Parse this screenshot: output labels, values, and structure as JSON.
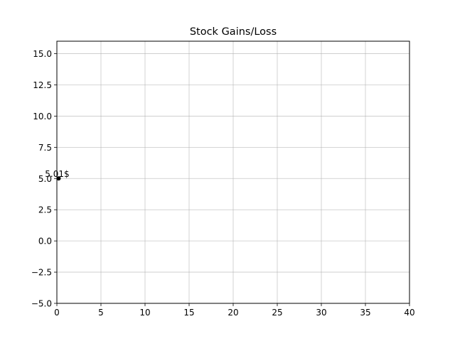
{
  "chart_data": {
    "type": "scatter",
    "title": "Stock Gains/Loss",
    "xlabel": "",
    "ylabel": "",
    "xlim": [
      0,
      40
    ],
    "ylim": [
      -5,
      16
    ],
    "xticks": [
      0,
      5,
      10,
      15,
      20,
      25,
      30,
      35,
      40
    ],
    "xtick_labels": [
      "0",
      "5",
      "10",
      "15",
      "20",
      "25",
      "30",
      "35",
      "40"
    ],
    "yticks": [
      -5,
      -2.5,
      0,
      2.5,
      5,
      7.5,
      10,
      12.5,
      15
    ],
    "ytick_labels": [
      "−5.0",
      "−2.5",
      "0.0",
      "2.5",
      "5.0",
      "7.5",
      "10.0",
      "12.5",
      "15.0"
    ],
    "grid": true,
    "grid_color": "#b0b0b0",
    "point_color": "#000000",
    "points": [
      {
        "x": 0.2,
        "y": 5.01,
        "label": "5.01$"
      }
    ]
  }
}
